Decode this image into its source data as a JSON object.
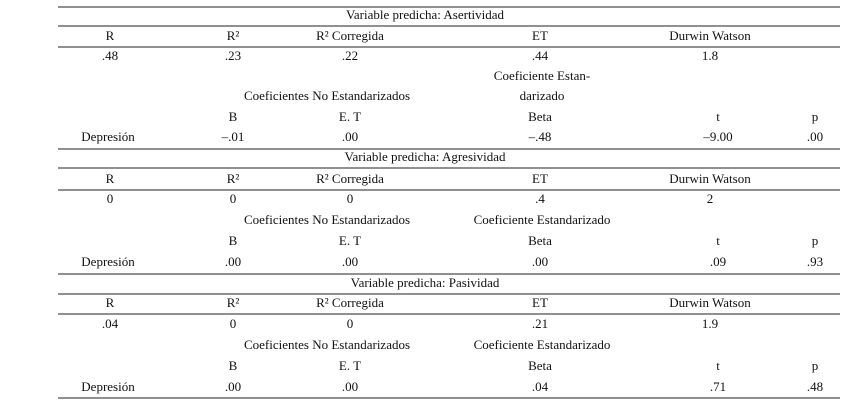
{
  "sections": [
    {
      "title": "Variable predicha: Asertividad",
      "header": [
        "R",
        "R²",
        "R² Corregida",
        "ET",
        "Durwin Watson"
      ],
      "values": [
        ".48",
        ".23",
        ".22",
        ".44",
        "1.8"
      ],
      "coef_unstd_header": "Coeficientes No Estandarizados",
      "coef_std_header": [
        "Coeficiente Estan-",
        "darizado"
      ],
      "sub_header": [
        "B",
        "E. T",
        "Beta",
        "t",
        "p"
      ],
      "row": [
        "Depresión",
        "–.01",
        ".00",
        "–.48",
        "–9.00",
        ".00"
      ]
    },
    {
      "title": "Variable predicha: Agresividad",
      "header": [
        "R",
        "R²",
        "R² Corregida",
        "ET",
        "Durwin Watson"
      ],
      "values": [
        "0",
        "0",
        "0",
        ".4",
        "2"
      ],
      "coef_unstd_header": "Coeficientes No Estandarizados",
      "coef_std_header": [
        "Coeficiente Estandarizado"
      ],
      "sub_header": [
        "B",
        "E. T",
        "Beta",
        "t",
        "p"
      ],
      "row": [
        "Depresión",
        ".00",
        ".00",
        ".00",
        ".09",
        ".93"
      ]
    },
    {
      "title": "Variable predicha: Pasividad",
      "header": [
        "R",
        "R²",
        "R² Corregida",
        "ET",
        "Durwin Watson"
      ],
      "values": [
        ".04",
        "0",
        "0",
        ".21",
        "1.9"
      ],
      "coef_unstd_header": "Coeficientes No Estandarizados",
      "coef_std_header": [
        "Coeficiente Estandarizado"
      ],
      "sub_header": [
        "B",
        "E. T",
        "Beta",
        "t",
        "p"
      ],
      "row": [
        "Depresión",
        ".00",
        ".00",
        ".04",
        ".71",
        ".48"
      ]
    }
  ]
}
